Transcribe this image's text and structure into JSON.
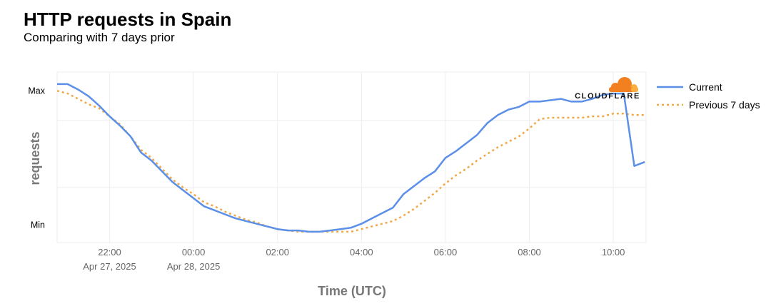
{
  "header": {
    "title": "HTTP requests in Spain",
    "subtitle": "Comparing with 7 days prior"
  },
  "logo": {
    "text": "CLOUDFLARE",
    "color": "#f38020"
  },
  "chart_data": {
    "type": "line",
    "title": "HTTP requests in Spain",
    "subtitle": "Comparing with 7 days prior",
    "xlabel": "Time (UTC)",
    "ylabel": "requests",
    "x_ticks": [
      {
        "time": "22:00",
        "label": "22:00",
        "date": "Apr 27, 2025"
      },
      {
        "time": "00:00",
        "label": "00:00",
        "date": "Apr 28, 2025"
      },
      {
        "time": "02:00",
        "label": "02:00",
        "date": ""
      },
      {
        "time": "04:00",
        "label": "04:00",
        "date": ""
      },
      {
        "time": "06:00",
        "label": "06:00",
        "date": ""
      },
      {
        "time": "08:00",
        "label": "08:00",
        "date": ""
      },
      {
        "time": "10:00",
        "label": "10:00",
        "date": ""
      }
    ],
    "y_ticks": [
      {
        "value": 1,
        "label": "Max"
      },
      {
        "value": 0,
        "label": "Min"
      }
    ],
    "ylim": [
      -0.13,
      1.14
    ],
    "xlim": [
      "Apr 27 20:45",
      "Apr 28 10:47"
    ],
    "grid": true,
    "legend": "right",
    "x": [
      "20:45",
      "21:00",
      "21:15",
      "21:30",
      "21:45",
      "22:00",
      "22:15",
      "22:30",
      "22:45",
      "23:00",
      "23:15",
      "23:30",
      "23:45",
      "00:00",
      "00:15",
      "00:30",
      "00:45",
      "01:00",
      "01:15",
      "01:30",
      "01:45",
      "02:00",
      "02:15",
      "02:30",
      "02:45",
      "03:00",
      "03:15",
      "03:30",
      "03:45",
      "04:00",
      "04:15",
      "04:30",
      "04:45",
      "05:00",
      "05:15",
      "05:30",
      "05:45",
      "06:00",
      "06:15",
      "06:30",
      "06:45",
      "07:00",
      "07:15",
      "07:30",
      "07:45",
      "08:00",
      "08:15",
      "08:30",
      "08:45",
      "09:00",
      "09:15",
      "09:30",
      "09:45",
      "10:00",
      "10:15",
      "10:30",
      "10:45"
    ],
    "series": [
      {
        "name": "Current",
        "color": "#5b8fe8",
        "style": "solid",
        "values": [
          1.05,
          1.05,
          1.01,
          0.96,
          0.89,
          0.81,
          0.74,
          0.66,
          0.54,
          0.48,
          0.4,
          0.32,
          0.26,
          0.2,
          0.14,
          0.11,
          0.08,
          0.05,
          0.03,
          0.01,
          -0.01,
          -0.03,
          -0.04,
          -0.04,
          -0.05,
          -0.05,
          -0.04,
          -0.03,
          -0.02,
          0.01,
          0.05,
          0.09,
          0.13,
          0.23,
          0.29,
          0.35,
          0.4,
          0.5,
          0.55,
          0.61,
          0.67,
          0.76,
          0.82,
          0.86,
          0.88,
          0.92,
          0.92,
          0.93,
          0.94,
          0.92,
          0.92,
          0.94,
          0.97,
          0.98,
          0.98,
          0.44,
          0.47
        ]
      },
      {
        "name": "Previous 7 days",
        "color": "#f0a94a",
        "style": "dotted",
        "values": [
          1.0,
          0.98,
          0.94,
          0.9,
          0.87,
          0.81,
          0.75,
          0.66,
          0.56,
          0.5,
          0.42,
          0.34,
          0.28,
          0.23,
          0.17,
          0.14,
          0.1,
          0.07,
          0.04,
          0.02,
          -0.01,
          -0.03,
          -0.04,
          -0.05,
          -0.05,
          -0.05,
          -0.05,
          -0.05,
          -0.05,
          -0.03,
          -0.01,
          0.01,
          0.03,
          0.07,
          0.12,
          0.18,
          0.24,
          0.31,
          0.37,
          0.42,
          0.48,
          0.53,
          0.58,
          0.62,
          0.66,
          0.72,
          0.79,
          0.8,
          0.8,
          0.8,
          0.8,
          0.81,
          0.81,
          0.83,
          0.83,
          0.82,
          0.82
        ]
      }
    ]
  }
}
